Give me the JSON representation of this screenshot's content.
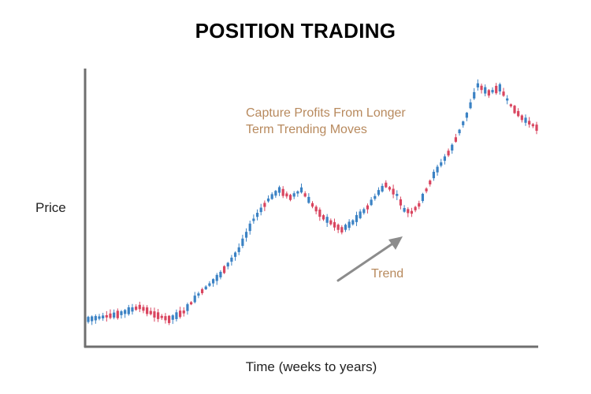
{
  "chart_data": {
    "type": "candlestick",
    "title": "POSITION TRADING",
    "xlabel": "Time (weeks to years)",
    "ylabel": "Price",
    "annotations": {
      "capture_line1": "Capture Profits From Longer",
      "capture_line2": "Term Trending Moves",
      "trend": "Trend"
    },
    "ylim": [
      0,
      100
    ],
    "grid": false,
    "colors": {
      "up": "#3b82c4",
      "down": "#d9455f",
      "axis": "#6f6f6f",
      "arrow": "#8c8c8c",
      "annotation": "#b88a5e"
    },
    "price_path": [
      [
        0,
        4
      ],
      [
        8,
        6
      ],
      [
        14,
        9
      ],
      [
        18,
        6
      ],
      [
        22,
        4
      ],
      [
        26,
        7
      ],
      [
        30,
        14
      ],
      [
        36,
        22
      ],
      [
        41,
        32
      ],
      [
        45,
        44
      ],
      [
        49,
        52
      ],
      [
        52,
        56
      ],
      [
        55,
        53
      ],
      [
        58,
        56
      ],
      [
        61,
        50
      ],
      [
        64,
        45
      ],
      [
        67,
        42
      ],
      [
        69,
        40
      ],
      [
        72,
        43
      ],
      [
        76,
        49
      ],
      [
        79,
        55
      ],
      [
        81,
        58
      ],
      [
        84,
        54
      ],
      [
        86,
        48
      ],
      [
        88,
        47
      ],
      [
        90,
        50
      ],
      [
        94,
        62
      ],
      [
        99,
        73
      ],
      [
        103,
        86
      ],
      [
        106,
        98
      ],
      [
        109,
        95
      ],
      [
        112,
        97
      ],
      [
        115,
        90
      ],
      [
        118,
        85
      ],
      [
        122,
        81
      ]
    ]
  }
}
